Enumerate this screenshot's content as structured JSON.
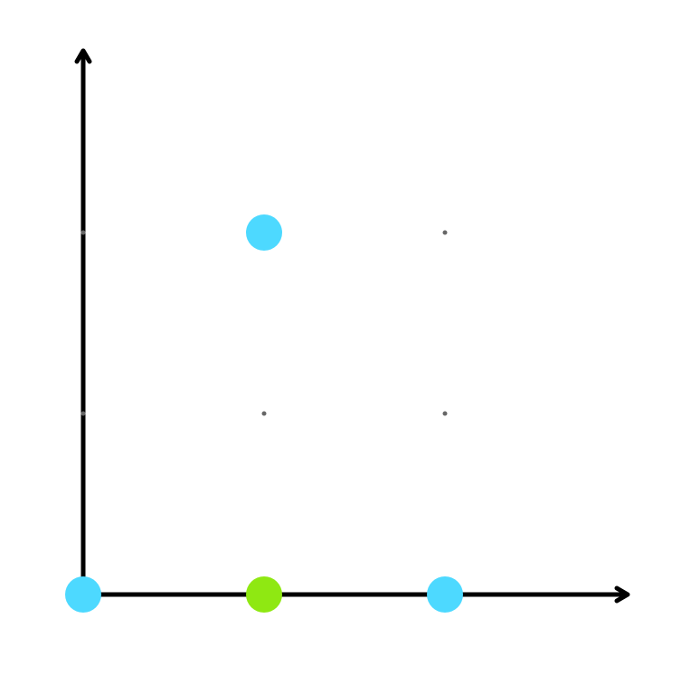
{
  "diagram": {
    "type": "lattice-point-grid",
    "grid_columns": 3,
    "grid_rows": 3,
    "colors": {
      "axis": "#000000",
      "grid_dot": "#666666",
      "background": "#ffffff",
      "cyan_point": "#4dd9ff",
      "green_point": "#8fe812"
    },
    "axes": {
      "x_arrow": true,
      "y_arrow": true
    },
    "points": [
      {
        "col": 0,
        "row": 0,
        "color": "#4dd9ff",
        "kind": "large"
      },
      {
        "col": 1,
        "row": 0,
        "color": "#8fe812",
        "kind": "large"
      },
      {
        "col": 2,
        "row": 0,
        "color": "#4dd9ff",
        "kind": "large"
      },
      {
        "col": 0,
        "row": 1,
        "color": "#666666",
        "kind": "grid-dot"
      },
      {
        "col": 1,
        "row": 1,
        "color": "#666666",
        "kind": "grid-dot"
      },
      {
        "col": 2,
        "row": 1,
        "color": "#666666",
        "kind": "grid-dot"
      },
      {
        "col": 0,
        "row": 2,
        "color": "#666666",
        "kind": "grid-dot"
      },
      {
        "col": 1,
        "row": 2,
        "color": "#4dd9ff",
        "kind": "large"
      },
      {
        "col": 2,
        "row": 2,
        "color": "#666666",
        "kind": "grid-dot"
      }
    ]
  }
}
